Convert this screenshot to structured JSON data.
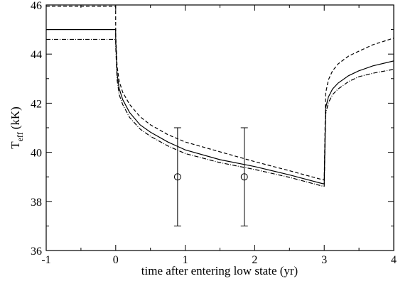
{
  "chart_data": {
    "type": "line",
    "title": "",
    "xlabel": "time after entering low state (yr)",
    "ylabel_main": "T",
    "ylabel_sub": "eff",
    "ylabel_unit": "(kK)",
    "xlim": [
      -1,
      4
    ],
    "ylim": [
      36,
      46
    ],
    "x_ticks": [
      -1,
      0,
      1,
      2,
      3,
      4
    ],
    "y_ticks": [
      36,
      38,
      40,
      42,
      44,
      46
    ],
    "grid": false,
    "legend": "none",
    "series": [
      {
        "style": "solid",
        "x": [
          -1,
          -0.001,
          0,
          0.02,
          0.05,
          0.1,
          0.2,
          0.35,
          0.5,
          0.75,
          1.0,
          1.5,
          2.0,
          2.5,
          2.98,
          3.0,
          3.02,
          3.06,
          3.12,
          3.2,
          3.35,
          3.5,
          3.7,
          4.0
        ],
        "y": [
          45.0,
          45.0,
          44.6,
          43.2,
          42.6,
          42.15,
          41.62,
          41.12,
          40.82,
          40.42,
          40.1,
          39.7,
          39.42,
          39.08,
          38.72,
          38.72,
          41.8,
          42.25,
          42.58,
          42.82,
          43.12,
          43.32,
          43.52,
          43.72
        ]
      },
      {
        "style": "dashed",
        "x": [
          -1,
          -0.001,
          0,
          0.02,
          0.05,
          0.1,
          0.2,
          0.35,
          0.5,
          0.75,
          1.0,
          1.5,
          2.0,
          2.5,
          2.98,
          3.0,
          3.02,
          3.06,
          3.12,
          3.2,
          3.35,
          3.5,
          3.7,
          4.0
        ],
        "y": [
          45.95,
          45.95,
          44.8,
          43.5,
          42.9,
          42.45,
          41.95,
          41.45,
          41.12,
          40.72,
          40.42,
          40.02,
          39.62,
          39.25,
          38.88,
          38.88,
          42.4,
          42.95,
          43.32,
          43.6,
          43.92,
          44.12,
          44.38,
          44.65
        ]
      },
      {
        "style": "dashdot",
        "x": [
          -1,
          -0.001,
          0,
          0.02,
          0.05,
          0.1,
          0.2,
          0.35,
          0.5,
          0.75,
          1.0,
          1.5,
          2.0,
          2.5,
          2.98,
          3.0,
          3.02,
          3.06,
          3.12,
          3.2,
          3.35,
          3.5,
          3.7,
          4.0
        ],
        "y": [
          44.6,
          44.6,
          44.3,
          42.95,
          42.35,
          41.95,
          41.42,
          40.95,
          40.65,
          40.26,
          39.95,
          39.58,
          39.3,
          38.98,
          38.62,
          38.62,
          41.55,
          42.02,
          42.35,
          42.58,
          42.88,
          43.08,
          43.22,
          43.38
        ]
      }
    ],
    "observations": [
      {
        "x": 0.89,
        "y": 39.0,
        "y_low": 37.0,
        "y_high": 41.0
      },
      {
        "x": 1.85,
        "y": 39.0,
        "y_low": 37.0,
        "y_high": 41.0
      }
    ]
  }
}
